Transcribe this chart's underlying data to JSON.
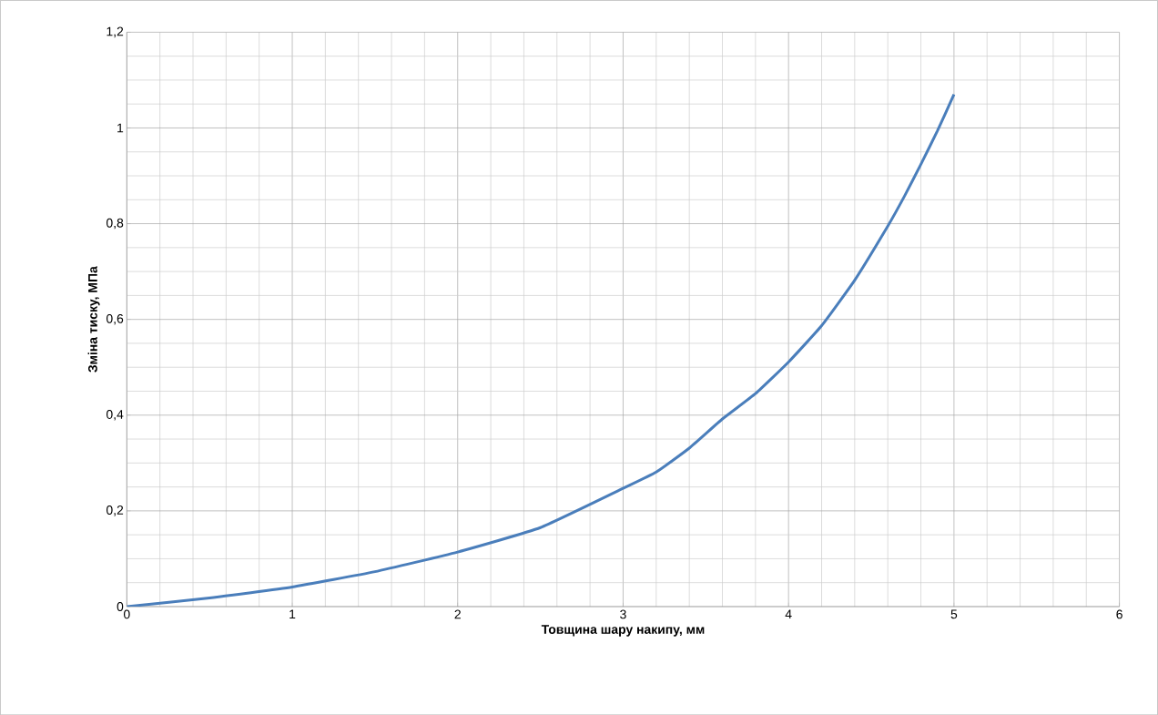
{
  "chart_data": {
    "type": "line",
    "xlabel": "Товщина шару накипу, мм",
    "ylabel": "Зміна тиску, МПа",
    "x": [
      0,
      0.5,
      1,
      1.5,
      2,
      2.5,
      3,
      3.2,
      3.4,
      3.6,
      3.8,
      4,
      4.2,
      4.4,
      4.6,
      4.7,
      4.8,
      4.9,
      5
    ],
    "series": [
      {
        "color": "#4a7ebb",
        "values": [
          0,
          0.018,
          0.041,
          0.073,
          0.114,
          0.165,
          0.247,
          0.281,
          0.331,
          0.392,
          0.445,
          0.511,
          0.587,
          0.682,
          0.795,
          0.857,
          0.924,
          0.994,
          1.07
        ]
      }
    ],
    "xlim": [
      0,
      6
    ],
    "ylim": [
      0,
      1.2
    ],
    "xticks": [
      0,
      1,
      2,
      3,
      4,
      5,
      6
    ],
    "yticks": [
      0,
      {
        "value": 0.2,
        "label": "0,2"
      },
      {
        "value": 0.4,
        "label": "0,4"
      },
      {
        "value": 0.6,
        "label": "0,6"
      },
      {
        "value": 0.8,
        "label": "0,8"
      },
      1,
      {
        "value": 1.2,
        "label": "1,2"
      }
    ],
    "grid": true,
    "marker": "none",
    "line_style": "solid"
  }
}
